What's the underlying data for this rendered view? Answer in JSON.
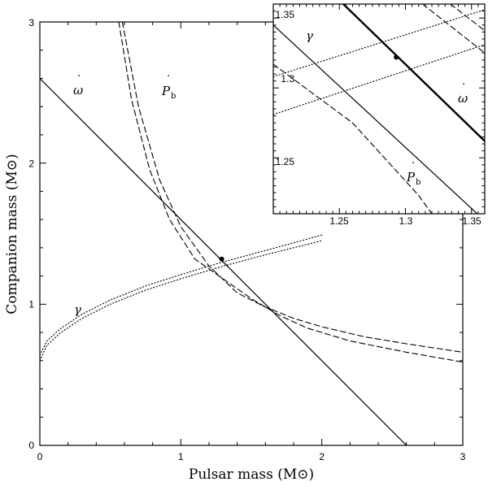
{
  "chart_data": {
    "type": "line",
    "xlabel": "Pulsar mass (M⊙)",
    "ylabel": "Companion mass (M⊙)",
    "xlim": [
      0,
      3
    ],
    "ylim": [
      0,
      3
    ],
    "xticks": [
      "0",
      "1",
      "2",
      "3"
    ],
    "yticks": [
      "0",
      "1",
      "2",
      "3"
    ],
    "labels": {
      "omega": "ω",
      "omega_dot": "˙",
      "pb": "P",
      "pb_dot": "˙",
      "pb_sub": "b",
      "gamma": "γ"
    },
    "series": [
      {
        "name": "omega-dot",
        "style": "solid",
        "points": [
          [
            0,
            2.6
          ],
          [
            2.6,
            0
          ]
        ]
      },
      {
        "name": "Pb-dot-upper",
        "style": "dashed",
        "points": [
          [
            0.585,
            3.0
          ],
          [
            0.7,
            2.4
          ],
          [
            0.85,
            1.88
          ],
          [
            1.0,
            1.55
          ],
          [
            1.2,
            1.27
          ],
          [
            1.4,
            1.08
          ],
          [
            1.6,
            0.98
          ],
          [
            1.8,
            0.9
          ],
          [
            2.0,
            0.84
          ],
          [
            2.3,
            0.77
          ],
          [
            2.6,
            0.72
          ],
          [
            3.0,
            0.66
          ]
        ]
      },
      {
        "name": "Pb-dot-lower",
        "style": "dashed",
        "points": [
          [
            0.56,
            3.0
          ],
          [
            0.65,
            2.45
          ],
          [
            0.78,
            1.95
          ],
          [
            0.92,
            1.6
          ],
          [
            1.1,
            1.32
          ],
          [
            1.3,
            1.18
          ],
          [
            1.5,
            1.04
          ],
          [
            1.7,
            0.92
          ],
          [
            1.9,
            0.83
          ],
          [
            2.2,
            0.74
          ],
          [
            2.6,
            0.66
          ],
          [
            3.0,
            0.59
          ]
        ]
      },
      {
        "name": "gamma-upper",
        "style": "dotted",
        "points": [
          [
            0,
            0.64
          ],
          [
            0.05,
            0.74
          ],
          [
            0.15,
            0.83
          ],
          [
            0.3,
            0.93
          ],
          [
            0.5,
            1.03
          ],
          [
            0.75,
            1.13
          ],
          [
            1.0,
            1.21
          ],
          [
            1.3,
            1.3
          ],
          [
            1.6,
            1.38
          ],
          [
            2.0,
            1.49
          ]
        ]
      },
      {
        "name": "gamma-lower",
        "style": "dotted",
        "points": [
          [
            0,
            0.6
          ],
          [
            0.05,
            0.71
          ],
          [
            0.15,
            0.8
          ],
          [
            0.3,
            0.9
          ],
          [
            0.5,
            1.0
          ],
          [
            0.75,
            1.1
          ],
          [
            1.0,
            1.18
          ],
          [
            1.3,
            1.27
          ],
          [
            1.6,
            1.35
          ],
          [
            2.0,
            1.45
          ]
        ]
      }
    ],
    "solution_point": [
      1.29,
      1.32
    ],
    "inset": {
      "xlim": [
        1.2,
        1.36
      ],
      "ylim": [
        1.21,
        1.36
      ],
      "xticks": [
        "1.25",
        "1.3",
        "1.35"
      ],
      "yticks": [
        "1.25",
        "1.3",
        "1.35"
      ],
      "series": [
        {
          "name": "omega-dot",
          "style": "thick",
          "points": [
            [
              1.253,
              1.36
            ],
            [
              1.36,
              1.262
            ]
          ]
        },
        {
          "name": "gamma-eq-line",
          "style": "solid",
          "points": [
            [
              1.2,
              1.345
            ],
            [
              1.36,
              1.205
            ]
          ]
        },
        {
          "name": "Pb-dot-upper",
          "style": "dashed",
          "points": [
            [
              1.313,
              1.36
            ],
            [
              1.36,
              1.325
            ]
          ]
        },
        {
          "name": "Pb-dot-middle",
          "style": "dashed",
          "points": [
            [
              1.334,
              1.36
            ],
            [
              1.36,
              1.341
            ]
          ]
        },
        {
          "name": "Pb-dot-lower",
          "style": "dashed",
          "points": [
            [
              1.2,
              1.317
            ],
            [
              1.26,
              1.275
            ],
            [
              1.31,
              1.223
            ],
            [
              1.32,
              1.21
            ]
          ]
        },
        {
          "name": "gamma-upper",
          "style": "dotted",
          "points": [
            [
              1.2,
              1.308
            ],
            [
              1.36,
              1.356
            ]
          ]
        },
        {
          "name": "gamma-lower",
          "style": "dotted",
          "points": [
            [
              1.2,
              1.281
            ],
            [
              1.36,
              1.331
            ]
          ]
        }
      ],
      "solution_point": [
        1.293,
        1.322
      ]
    }
  }
}
